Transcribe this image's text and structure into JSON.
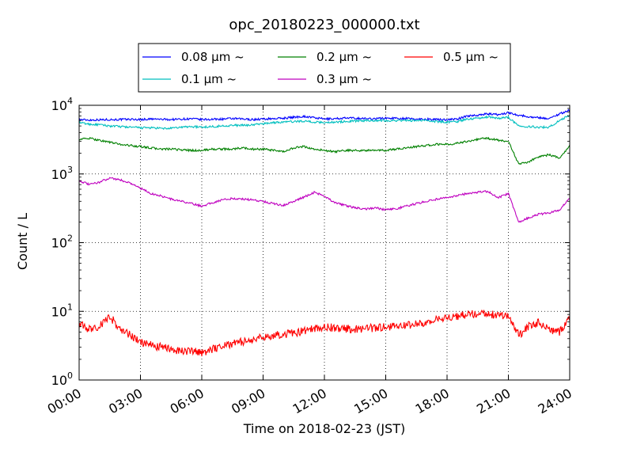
{
  "chart_data": {
    "type": "line",
    "title": "opc_20180223_000000.txt",
    "xlabel": "Time on 2018-02-23 (JST)",
    "ylabel": "Count / L",
    "y_scale": "log",
    "ylim": [
      1,
      10000
    ],
    "xlim": [
      "00:00",
      "24:00"
    ],
    "x_tick_labels": [
      "00:00",
      "03:00",
      "06:00",
      "09:00",
      "12:00",
      "15:00",
      "18:00",
      "21:00",
      "24:00"
    ],
    "y_tick_labels": [
      {
        "base": "10",
        "exp": "0"
      },
      {
        "base": "10",
        "exp": "1"
      },
      {
        "base": "10",
        "exp": "2"
      },
      {
        "base": "10",
        "exp": "3"
      },
      {
        "base": "10",
        "exp": "4"
      }
    ],
    "grid": true,
    "legend_position": "top-center",
    "x_hours": [
      0,
      0.5,
      1.0,
      1.5,
      2.0,
      2.5,
      3.0,
      3.5,
      4.0,
      4.5,
      5.0,
      5.5,
      6.0,
      6.5,
      7.0,
      7.5,
      8.0,
      8.5,
      9.0,
      9.5,
      10.0,
      10.5,
      11.0,
      11.5,
      12.0,
      12.5,
      13.0,
      13.5,
      14.0,
      14.5,
      15.0,
      15.5,
      16.0,
      16.5,
      17.0,
      17.5,
      18.0,
      18.5,
      19.0,
      19.5,
      20.0,
      20.5,
      21.0,
      21.5,
      22.0,
      22.5,
      23.0,
      23.5,
      24.0
    ],
    "series": [
      {
        "name": "0.08 µm ~",
        "color": "#0000ff",
        "values": [
          6200,
          6100,
          6150,
          6200,
          6200,
          6250,
          6200,
          6300,
          6250,
          6200,
          6300,
          6350,
          6200,
          6250,
          6300,
          6400,
          6300,
          6200,
          6300,
          6400,
          6500,
          6700,
          6900,
          6600,
          6300,
          6400,
          6500,
          6500,
          6400,
          6400,
          6500,
          6500,
          6400,
          6300,
          6300,
          6200,
          6200,
          6300,
          7000,
          7200,
          7500,
          7300,
          7800,
          7200,
          6800,
          6600,
          6400,
          7500,
          8500
        ]
      },
      {
        "name": "0.1 µm ~",
        "color": "#00bfbf",
        "values": [
          5600,
          5300,
          5200,
          5000,
          4900,
          4800,
          4700,
          4700,
          4600,
          4600,
          4800,
          4900,
          4800,
          4900,
          5000,
          5100,
          5100,
          5200,
          5400,
          5600,
          5700,
          5800,
          5900,
          5700,
          5600,
          5700,
          5800,
          5900,
          6000,
          6000,
          6000,
          6000,
          6000,
          6000,
          6000,
          5800,
          5700,
          5800,
          6300,
          6500,
          6800,
          6500,
          6700,
          5000,
          4900,
          4800,
          4800,
          6000,
          7200
        ]
      },
      {
        "name": "0.2 µm ~",
        "color": "#008000",
        "values": [
          3200,
          3300,
          3100,
          2900,
          2700,
          2600,
          2500,
          2400,
          2300,
          2300,
          2250,
          2200,
          2200,
          2300,
          2300,
          2300,
          2400,
          2300,
          2300,
          2200,
          2100,
          2400,
          2500,
          2300,
          2200,
          2100,
          2200,
          2200,
          2200,
          2200,
          2200,
          2300,
          2400,
          2500,
          2600,
          2700,
          2700,
          2800,
          3000,
          3200,
          3300,
          3100,
          3000,
          1400,
          1500,
          1800,
          1900,
          1700,
          2600
        ]
      },
      {
        "name": "0.3 µm ~",
        "color": "#bf00bf",
        "values": [
          800,
          700,
          760,
          880,
          820,
          740,
          620,
          520,
          480,
          430,
          400,
          370,
          340,
          380,
          420,
          440,
          430,
          420,
          400,
          370,
          350,
          400,
          460,
          540,
          480,
          380,
          350,
          320,
          310,
          320,
          300,
          310,
          340,
          370,
          400,
          430,
          450,
          480,
          520,
          540,
          560,
          450,
          520,
          200,
          230,
          260,
          270,
          300,
          450
        ]
      },
      {
        "name": "0.5 µm ~",
        "color": "#ff0000",
        "values": [
          6.5,
          5.5,
          6.0,
          8.5,
          5.5,
          4.5,
          3.5,
          3.2,
          3.0,
          2.8,
          2.7,
          2.6,
          2.5,
          2.8,
          3.2,
          3.4,
          3.6,
          3.8,
          4.2,
          4.5,
          4.6,
          4.8,
          5.2,
          5.6,
          5.8,
          5.8,
          5.6,
          5.5,
          5.6,
          5.8,
          6.0,
          6.1,
          6.3,
          6.5,
          7.0,
          7.5,
          8.0,
          8.5,
          9.0,
          9.5,
          9.5,
          8.5,
          9.0,
          4.5,
          6.0,
          7.0,
          5.5,
          5.0,
          8.0
        ]
      }
    ]
  }
}
